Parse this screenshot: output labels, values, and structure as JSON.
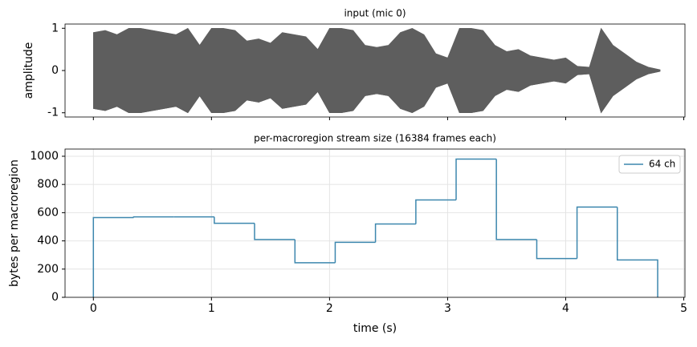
{
  "chart_data": [
    {
      "type": "envelope",
      "title": "input (mic 0)",
      "ylabel": "amplitude",
      "x": [
        0,
        0.1,
        0.2,
        0.3,
        0.4,
        0.5,
        0.6,
        0.7,
        0.8,
        0.9,
        1.0,
        1.1,
        1.2,
        1.3,
        1.4,
        1.5,
        1.6,
        1.7,
        1.8,
        1.9,
        2.0,
        2.1,
        2.2,
        2.3,
        2.4,
        2.5,
        2.6,
        2.7,
        2.8,
        2.9,
        3.0,
        3.1,
        3.2,
        3.3,
        3.4,
        3.5,
        3.6,
        3.7,
        3.8,
        3.9,
        4.0,
        4.1,
        4.2,
        4.3,
        4.4,
        4.5,
        4.6,
        4.7,
        4.8
      ],
      "upper": [
        0.9,
        0.95,
        0.85,
        1,
        1,
        0.95,
        0.9,
        0.85,
        1,
        0.6,
        1,
        1,
        0.95,
        0.7,
        0.75,
        0.65,
        0.9,
        0.85,
        0.8,
        0.5,
        1,
        1,
        0.95,
        0.6,
        0.55,
        0.6,
        0.9,
        1,
        0.85,
        0.4,
        0.3,
        1,
        1,
        0.95,
        0.6,
        0.45,
        0.5,
        0.35,
        0.3,
        0.25,
        0.3,
        0.1,
        0.08,
        1,
        0.6,
        0.4,
        0.2,
        0.08,
        0.02
      ],
      "lower": [
        -0.9,
        -0.95,
        -0.85,
        -1,
        -1,
        -0.95,
        -0.9,
        -0.85,
        -1,
        -0.6,
        -1,
        -1,
        -0.95,
        -0.7,
        -0.75,
        -0.65,
        -0.9,
        -0.85,
        -0.8,
        -0.5,
        -1,
        -1,
        -0.95,
        -0.6,
        -0.55,
        -0.6,
        -0.9,
        -1,
        -0.85,
        -0.4,
        -0.3,
        -1,
        -1,
        -0.95,
        -0.6,
        -0.45,
        -0.5,
        -0.35,
        -0.3,
        -0.25,
        -0.3,
        -0.1,
        -0.08,
        -1,
        -0.6,
        -0.4,
        -0.2,
        -0.08,
        -0.02
      ],
      "color": "#5e5e5e",
      "xlim": [
        -0.24,
        5.01
      ],
      "xticks": [
        0,
        1,
        2,
        3,
        4,
        5
      ],
      "ylim": [
        -1.1,
        1.1
      ],
      "yticks": [
        -1,
        0,
        1
      ],
      "grid": false
    },
    {
      "type": "step",
      "title": "per-macroregion stream size (16384 frames each)",
      "ylabel": "bytes per macroregion",
      "xlabel": "time (s)",
      "edges": [
        0,
        0.341,
        0.683,
        1.024,
        1.365,
        1.707,
        2.048,
        2.389,
        2.731,
        3.072,
        3.413,
        3.755,
        4.096,
        4.437,
        4.779
      ],
      "series": [
        {
          "name": "64 ch",
          "color": "#3d87ae",
          "values": [
            565,
            570,
            570,
            525,
            410,
            245,
            390,
            520,
            690,
            980,
            410,
            275,
            640,
            265
          ]
        }
      ],
      "xlim": [
        -0.24,
        5.01
      ],
      "xticks": [
        0,
        1,
        2,
        3,
        4,
        5
      ],
      "ylim": [
        0,
        1051
      ],
      "yticks": [
        0,
        200,
        400,
        600,
        800,
        1000
      ],
      "grid": true,
      "legend": "upper right"
    }
  ]
}
